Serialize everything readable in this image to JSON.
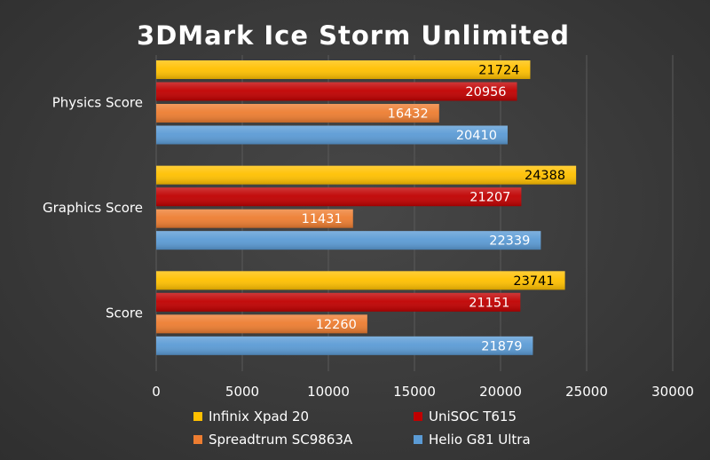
{
  "chart_data": {
    "type": "bar",
    "orientation": "horizontal",
    "title": "3DMark Ice Storm Unlimited",
    "categories": [
      "Physics Score",
      "Graphics Score",
      "Score"
    ],
    "series": [
      {
        "name": "Infinix Xpad 20",
        "color": "#ffc000",
        "values": [
          21724,
          24388,
          23741
        ],
        "label_color": "#000000"
      },
      {
        "name": "UniSOC T615",
        "color": "#c00000",
        "values": [
          20956,
          21207,
          21151
        ],
        "label_color": "#ffffff"
      },
      {
        "name": "Spreadtrum SC9863A",
        "color": "#ed7d31",
        "values": [
          16432,
          11431,
          12260
        ],
        "label_color": "#ffffff"
      },
      {
        "name": "Helio G81 Ultra",
        "color": "#5b9bd5",
        "values": [
          20410,
          22339,
          21879
        ],
        "label_color": "#ffffff"
      }
    ],
    "xlim": [
      0,
      30000
    ],
    "xticks": [
      "0",
      "5000",
      "10000",
      "15000",
      "20000",
      "25000",
      "30000"
    ],
    "xlabel": "",
    "ylabel": "",
    "grid": true,
    "legend_position": "bottom"
  }
}
